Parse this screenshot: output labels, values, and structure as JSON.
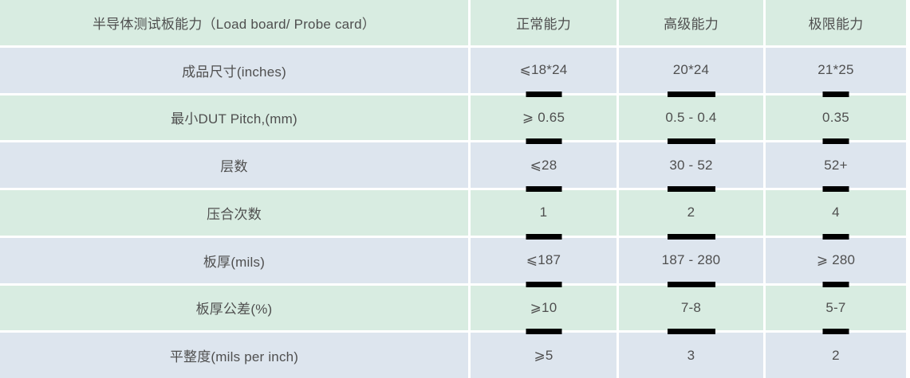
{
  "table": {
    "header": {
      "label": "半导体测试板能力（Load board/ Probe card）",
      "columns": [
        "正常能力",
        "高级能力",
        "极限能力"
      ]
    },
    "rows": [
      {
        "label": "成品尺寸(inches)",
        "values": [
          "⩽18*24",
          "20*24",
          "21*25"
        ]
      },
      {
        "label": "最小DUT Pitch,(mm)",
        "values": [
          "⩾ 0.65",
          "0.5 - 0.4",
          "0.35"
        ]
      },
      {
        "label": "层数",
        "values": [
          "⩽28",
          "30 - 52",
          "52+"
        ]
      },
      {
        "label": "压合次数",
        "values": [
          "1",
          "2",
          "4"
        ]
      },
      {
        "label": "板厚(mils)",
        "values": [
          "⩽187",
          "187 - 280",
          "⩾ 280"
        ]
      },
      {
        "label": "板厚公差(%)",
        "values": [
          "⩾10",
          "7-8",
          "5-7"
        ]
      },
      {
        "label": "平整度(mils per inch)",
        "values": [
          "⩾5",
          "3",
          "2"
        ]
      }
    ]
  },
  "colors": {
    "row_green": "#d8ece1",
    "row_blue": "#dde5ee",
    "divider": "#ffffff",
    "text": "#4f4f4f",
    "bar": "#000000"
  }
}
